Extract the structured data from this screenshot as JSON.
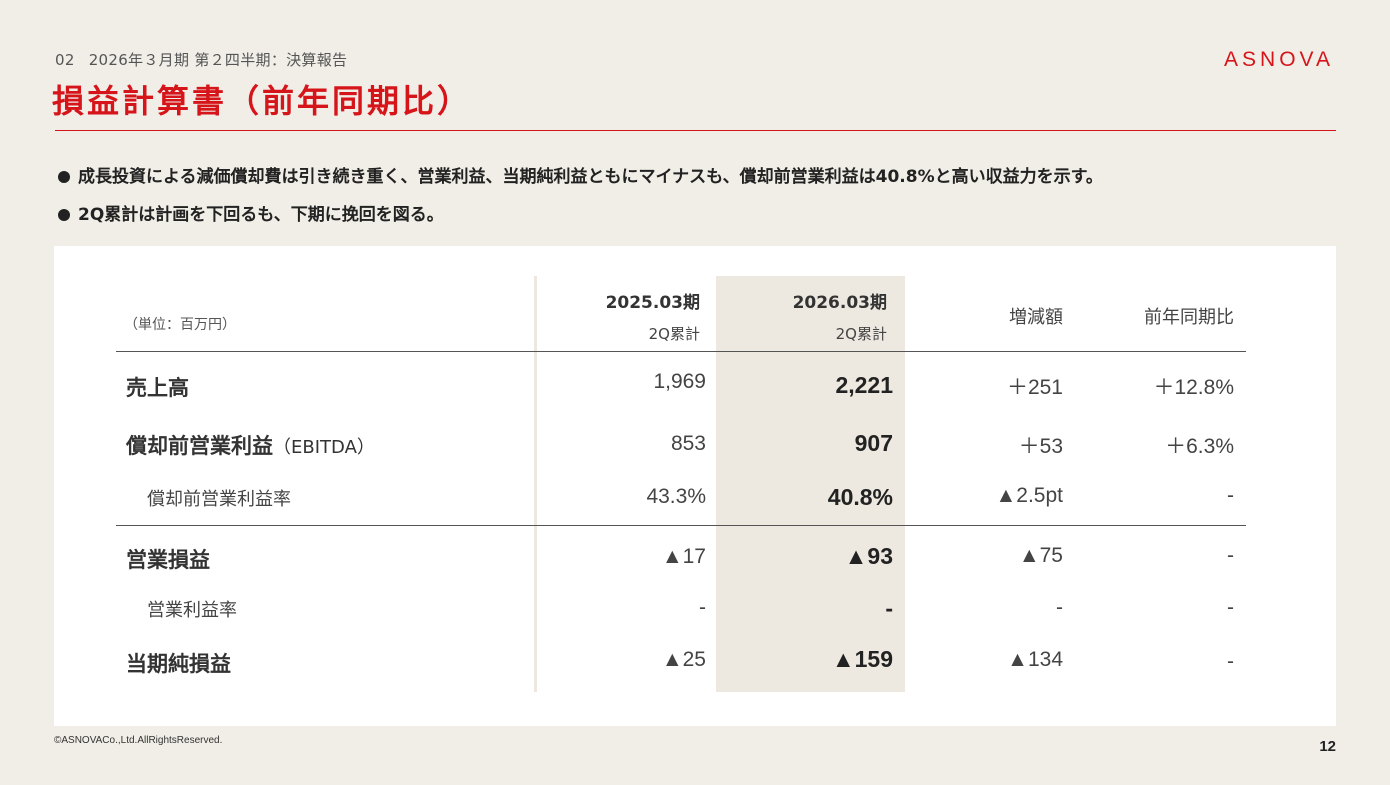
{
  "header": {
    "section_number": "02",
    "breadcrumb": "2026年３月期 第２四半期：決算報告",
    "logo_text": "ASNOVA",
    "title": "損益計算書（前年同期比）"
  },
  "bullets": [
    "成長投資による減価償却費は引き続き重く、営業利益、当期純利益ともにマイナスも、償却前営業利益は40.8%と高い収益力を示す。",
    "2Q累計は計画を下回るも、下期に挽回を図る。"
  ],
  "table": {
    "unit": "（単位：百万円）",
    "columns": [
      {
        "title": "2025.03期",
        "sub": "2Q累計"
      },
      {
        "title": "2026.03期",
        "sub": "2Q累計"
      },
      {
        "title": "増減額"
      },
      {
        "title": "前年同期比"
      }
    ],
    "rows": [
      {
        "label": "売上高",
        "suffix": "",
        "values": [
          "1,969",
          "2,221",
          "＋251",
          "＋12.8%"
        ]
      },
      {
        "label": "償却前営業利益",
        "suffix": "（EBITDA）",
        "values": [
          "853",
          "907",
          "＋53",
          "＋6.3%"
        ]
      },
      {
        "label": "償却前営業利益率",
        "values": [
          "43.3%",
          "40.8%",
          "▲2.5pt",
          "-"
        ]
      },
      {
        "label": "営業損益",
        "suffix": "",
        "values": [
          "▲17",
          "▲93",
          "▲75",
          "-"
        ]
      },
      {
        "label": "営業利益率",
        "values": [
          "-",
          "-",
          "-",
          "-"
        ]
      },
      {
        "label": "当期純損益",
        "suffix": "",
        "values": [
          "▲25",
          "▲159",
          "▲134",
          "-"
        ]
      }
    ]
  },
  "footer": {
    "copyright": "©ASNOVACo.,Ltd.AllRightsReserved.",
    "page_number": "12"
  },
  "colors": {
    "accent": "#d6151b",
    "background": "#f1ede7",
    "highlight_column": "#ede8e0"
  }
}
